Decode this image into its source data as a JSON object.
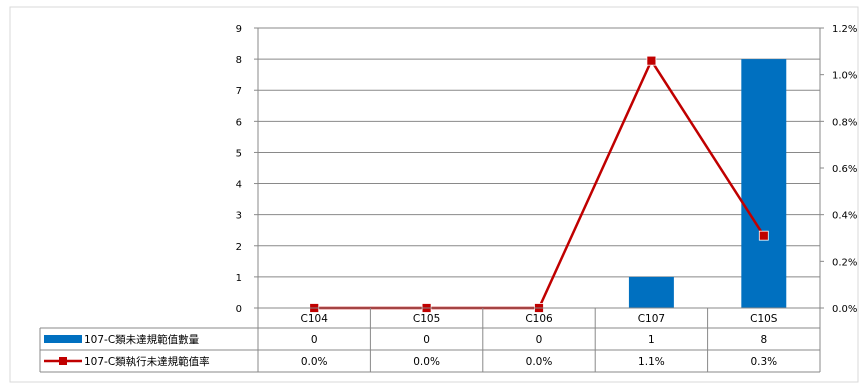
{
  "colors": {
    "bar": "#0070C0",
    "line": "#C00000",
    "grid": "#898989"
  },
  "chart_data": {
    "type": "bar",
    "categories": [
      "C104",
      "C105",
      "C106",
      "C107",
      "C10S"
    ],
    "y_ticks": [
      "0",
      "1",
      "2",
      "3",
      "4",
      "5",
      "6",
      "7",
      "8",
      "9"
    ],
    "y2_ticks": [
      "0.0%",
      "0.2%",
      "0.4%",
      "0.6%",
      "0.8%",
      "1.0%",
      "1.2%"
    ],
    "ylim": [
      0,
      9
    ],
    "y2lim": [
      0,
      1.2
    ],
    "grid": true,
    "legend_placement": "data-table-left",
    "series": [
      {
        "name": "107-C類未達規範值數量",
        "type": "bar",
        "axis": "left",
        "values": [
          0,
          0,
          0,
          1,
          8
        ],
        "labels": [
          "0",
          "0",
          "0",
          "1",
          "8"
        ]
      },
      {
        "name": "107-C類執行未達規範值率",
        "type": "line",
        "axis": "right",
        "values": [
          0.0,
          0.0,
          0.0,
          1.06,
          0.31
        ],
        "labels": [
          "0.0%",
          "0.0%",
          "0.0%",
          "1.1%",
          "0.3%"
        ]
      }
    ]
  }
}
